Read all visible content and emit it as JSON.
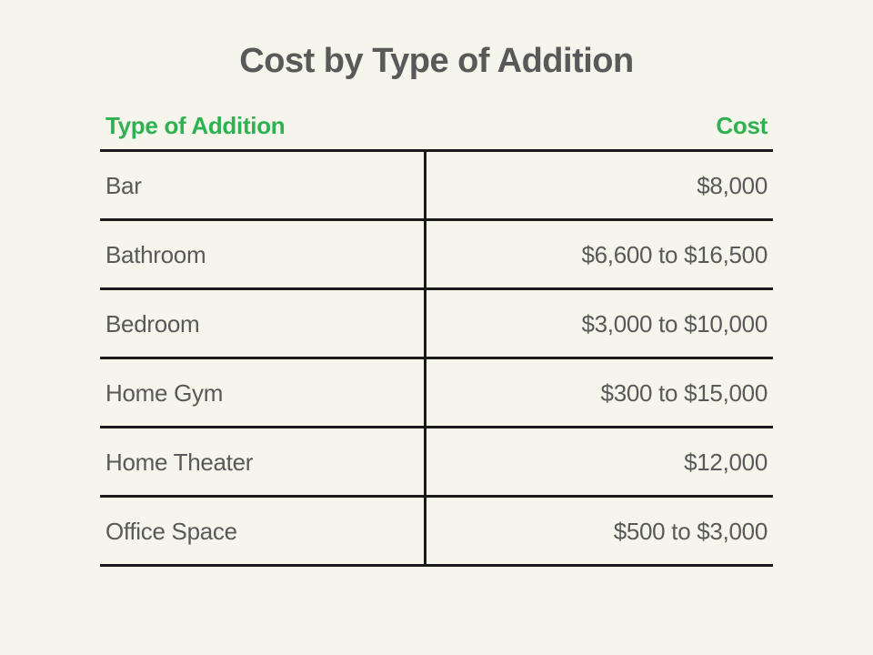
{
  "title": "Cost by Type of Addition",
  "table": {
    "type": "table",
    "header_color": "#2fb152",
    "text_color": "#595959",
    "border_color": "#1a1a1a",
    "background_color": "#f5f5ec",
    "title_fontsize": 38,
    "header_fontsize": 26,
    "cell_fontsize": 26,
    "border_width": 3,
    "left_col_width": 359,
    "total_width": 740,
    "columns": [
      "Type of Addition",
      "Cost"
    ],
    "rows": [
      {
        "type": "Bar",
        "cost": "$8,000"
      },
      {
        "type": "Bathroom",
        "cost": "$6,600 to $16,500"
      },
      {
        "type": "Bedroom",
        "cost": "$3,000 to $10,000"
      },
      {
        "type": "Home Gym",
        "cost": "$300 to $15,000"
      },
      {
        "type": "Home Theater",
        "cost": "$12,000"
      },
      {
        "type": "Office Space",
        "cost": "$500 to $3,000"
      }
    ]
  }
}
